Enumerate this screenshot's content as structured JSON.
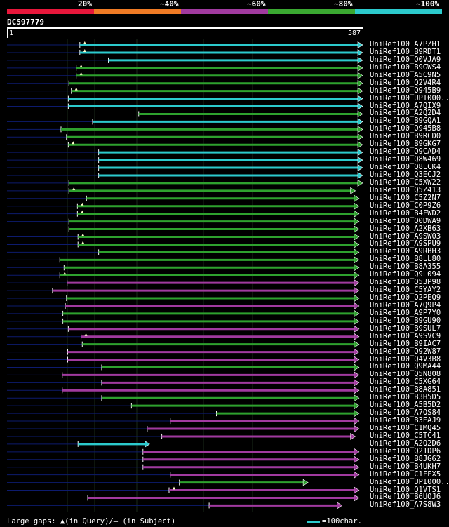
{
  "legend": {
    "segments": [
      {
        "label": "20%",
        "color": "#e8173b"
      },
      {
        "label": "~40%",
        "color": "#f07b25"
      },
      {
        "label": "~60%",
        "color": "#a13a9f"
      },
      {
        "label": "~80%",
        "color": "#3aa831"
      },
      {
        "label": "~100%",
        "color": "#2ccacd"
      }
    ]
  },
  "query": {
    "name": "DC597779",
    "start": "1",
    "end": "587",
    "length": 587
  },
  "colors": {
    "cyan": "#2ccacd",
    "green": "#2ea12e",
    "purple": "#a13a9f",
    "navy": "#0d1b6e"
  },
  "hits": [
    {
      "label": "UniRef100_A7PZH1",
      "start": 121,
      "end": 587,
      "color": "cyan",
      "qgap": true
    },
    {
      "label": "UniRef100_B9RDT1",
      "start": 121,
      "end": 587,
      "color": "cyan",
      "qgap": true
    },
    {
      "label": "UniRef100_Q0VJA9",
      "start": 168,
      "end": 587,
      "color": "cyan",
      "qgap": false
    },
    {
      "label": "UniRef100_B9GWS4",
      "start": 115,
      "end": 587,
      "color": "green",
      "qgap": true
    },
    {
      "label": "UniRef100_A5C9N5",
      "start": 115,
      "end": 587,
      "color": "green",
      "qgap": true
    },
    {
      "label": "UniRef100_Q2V4R4",
      "start": 103,
      "end": 587,
      "color": "green",
      "qgap": false
    },
    {
      "label": "UniRef100_Q945B9",
      "start": 107,
      "end": 587,
      "color": "green",
      "qgap": true
    },
    {
      "label": "UniRef100_UPI000..",
      "start": 102,
      "end": 587,
      "color": "cyan",
      "qgap": false
    },
    {
      "label": "UniRef100_A7QIX9",
      "start": 102,
      "end": 587,
      "color": "cyan",
      "qgap": false
    },
    {
      "label": "UniRef100_A2Q2D4",
      "start": 218,
      "end": 587,
      "color": "green",
      "qgap": false
    },
    {
      "label": "UniRef100_B9GQA1",
      "start": 142,
      "end": 587,
      "color": "cyan",
      "qgap": false
    },
    {
      "label": "UniRef100_Q945B8",
      "start": 90,
      "end": 587,
      "color": "green",
      "qgap": false
    },
    {
      "label": "UniRef100_B9RCD0",
      "start": 99,
      "end": 587,
      "color": "green",
      "qgap": false
    },
    {
      "label": "UniRef100_B9GKG7",
      "start": 102,
      "end": 587,
      "color": "green",
      "qgap": true
    },
    {
      "label": "UniRef100_Q9CAD4",
      "start": 152,
      "end": 587,
      "color": "cyan",
      "qgap": false
    },
    {
      "label": "UniRef100_Q8W469",
      "start": 152,
      "end": 587,
      "color": "cyan",
      "qgap": false
    },
    {
      "label": "UniRef100_Q8LCK4",
      "start": 152,
      "end": 587,
      "color": "cyan",
      "qgap": false
    },
    {
      "label": "UniRef100_Q3ECJ2",
      "start": 152,
      "end": 587,
      "color": "cyan",
      "qgap": false
    },
    {
      "label": "UniRef100_C5XW22",
      "start": 103,
      "end": 587,
      "color": "green",
      "qgap": false
    },
    {
      "label": "UniRef100_Q5Z413",
      "start": 103,
      "end": 575,
      "color": "green",
      "qgap": true
    },
    {
      "label": "UniRef100_C5Z2N7",
      "start": 132,
      "end": 581,
      "color": "green",
      "qgap": false
    },
    {
      "label": "UniRef100_C0P9Z6",
      "start": 117,
      "end": 581,
      "color": "green",
      "qgap": true
    },
    {
      "label": "UniRef100_B4FWD2",
      "start": 117,
      "end": 581,
      "color": "green",
      "qgap": true
    },
    {
      "label": "UniRef100_Q0DWA9",
      "start": 103,
      "end": 581,
      "color": "green",
      "qgap": false
    },
    {
      "label": "UniRef100_A2XB63",
      "start": 103,
      "end": 581,
      "color": "green",
      "qgap": false
    },
    {
      "label": "UniRef100_A9SW03",
      "start": 118,
      "end": 581,
      "color": "green",
      "qgap": true
    },
    {
      "label": "UniRef100_A9SPU9",
      "start": 118,
      "end": 581,
      "color": "green",
      "qgap": true
    },
    {
      "label": "UniRef100_A9RBH3",
      "start": 152,
      "end": 581,
      "color": "green",
      "qgap": false
    },
    {
      "label": "UniRef100_B8LL80",
      "start": 88,
      "end": 581,
      "color": "green",
      "qgap": false
    },
    {
      "label": "UniRef100_B8A355",
      "start": 95,
      "end": 581,
      "color": "green",
      "qgap": false
    },
    {
      "label": "UniRef100_Q9L094",
      "start": 88,
      "end": 581,
      "color": "green",
      "qgap": true
    },
    {
      "label": "UniRef100_Q53P98",
      "start": 100,
      "end": 581,
      "color": "purple",
      "qgap": false
    },
    {
      "label": "UniRef100_C5YAY2",
      "start": 76,
      "end": 581,
      "color": "purple",
      "qgap": false
    },
    {
      "label": "UniRef100_Q2PEQ9",
      "start": 99,
      "end": 581,
      "color": "green",
      "qgap": false
    },
    {
      "label": "UniRef100_A7Q9P4",
      "start": 97,
      "end": 581,
      "color": "purple",
      "qgap": false
    },
    {
      "label": "UniRef100_A9P7Y0",
      "start": 93,
      "end": 581,
      "color": "green",
      "qgap": false
    },
    {
      "label": "UniRef100_B9GU90",
      "start": 93,
      "end": 581,
      "color": "green",
      "qgap": false
    },
    {
      "label": "UniRef100_B9SUL7",
      "start": 102,
      "end": 581,
      "color": "purple",
      "qgap": false
    },
    {
      "label": "UniRef100_A9SVC9",
      "start": 123,
      "end": 581,
      "color": "purple",
      "qgap": true
    },
    {
      "label": "UniRef100_B9IAC7",
      "start": 125,
      "end": 581,
      "color": "green",
      "qgap": false
    },
    {
      "label": "UniRef100_Q92W87",
      "start": 101,
      "end": 581,
      "color": "purple",
      "qgap": false
    },
    {
      "label": "UniRef100_Q4V3B8",
      "start": 101,
      "end": 581,
      "color": "purple",
      "qgap": false
    },
    {
      "label": "UniRef100_Q9MA44",
      "start": 157,
      "end": 581,
      "color": "green",
      "qgap": false
    },
    {
      "label": "UniRef100_Q5N808",
      "start": 92,
      "end": 581,
      "color": "purple",
      "qgap": false
    },
    {
      "label": "UniRef100_C5XG64",
      "start": 157,
      "end": 581,
      "color": "purple",
      "qgap": false
    },
    {
      "label": "UniRef100_B8A851",
      "start": 92,
      "end": 581,
      "color": "purple",
      "qgap": false
    },
    {
      "label": "UniRef100_B3H5D5",
      "start": 157,
      "end": 581,
      "color": "green",
      "qgap": false
    },
    {
      "label": "UniRef100_A5B5D2",
      "start": 206,
      "end": 581,
      "color": "green",
      "qgap": false
    },
    {
      "label": "UniRef100_A7QS84",
      "start": 346,
      "end": 581,
      "color": "green",
      "qgap": false
    },
    {
      "label": "UniRef100_B3EAJ9",
      "start": 270,
      "end": 581,
      "color": "purple",
      "qgap": false
    },
    {
      "label": "UniRef100_C1MQ45",
      "start": 232,
      "end": 581,
      "color": "purple",
      "qgap": false
    },
    {
      "label": "UniRef100_C5TC41",
      "start": 256,
      "end": 575,
      "color": "purple",
      "qgap": false
    },
    {
      "label": "UniRef100_A2Q2D6",
      "start": 118,
      "end": 236,
      "color": "cyan",
      "qgap": false
    },
    {
      "label": "UniRef100_Q21DP6",
      "start": 225,
      "end": 581,
      "color": "purple",
      "qgap": false
    },
    {
      "label": "UniRef100_B8JG62",
      "start": 225,
      "end": 581,
      "color": "purple",
      "qgap": false
    },
    {
      "label": "UniRef100_B4UKH7",
      "start": 225,
      "end": 581,
      "color": "purple",
      "qgap": false
    },
    {
      "label": "UniRef100_C1FFX5",
      "start": 270,
      "end": 581,
      "color": "purple",
      "qgap": false
    },
    {
      "label": "UniRef100_UPI000..",
      "start": 285,
      "end": 497,
      "color": "green",
      "qgap": false
    },
    {
      "label": "UniRef100_Q1VTS1",
      "start": 268,
      "end": 581,
      "color": "purple",
      "qgap": true
    },
    {
      "label": "UniRef100_B6UOJ6",
      "start": 134,
      "end": 581,
      "color": "purple",
      "qgap": false
    },
    {
      "label": "UniRef100_A7S8W3",
      "start": 334,
      "end": 553,
      "color": "purple",
      "qgap": false
    }
  ],
  "footer": {
    "gaps_text": "Large gaps: ▲(in Query)/– (in Subject)",
    "scale_text": "=100char."
  }
}
